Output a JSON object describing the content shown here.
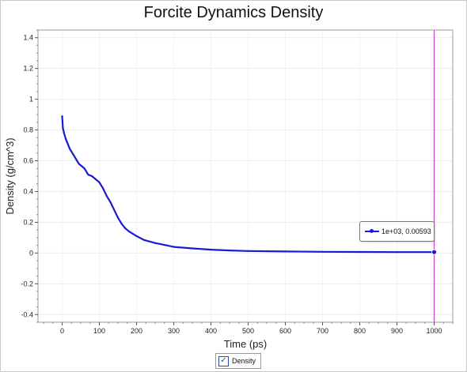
{
  "chart_data": {
    "type": "line",
    "title": "Forcite Dynamics Density",
    "xlabel": "Time (ps)",
    "ylabel": "Density (g/cm^3)",
    "xlim": [
      -65,
      1050
    ],
    "ylim": [
      -0.45,
      1.45
    ],
    "xticks": [
      0,
      100,
      200,
      300,
      400,
      500,
      600,
      700,
      800,
      900,
      1000
    ],
    "yticks": [
      -0.4,
      -0.2,
      0,
      0.2,
      0.4,
      0.6,
      0.8,
      1,
      1.2,
      1.4
    ],
    "ytick_labels": [
      "-0.4",
      "-0.2",
      "0",
      "0.2",
      "0.4",
      "0.6",
      "0.8",
      "1",
      "1.2",
      "1.4"
    ],
    "grid": true,
    "legend_position": "bottom-center",
    "series": [
      {
        "name": "Density",
        "color": "#1a1ad0",
        "x": [
          0,
          2,
          5,
          10,
          15,
          20,
          30,
          40,
          45,
          50,
          55,
          60,
          70,
          80,
          90,
          100,
          110,
          120,
          130,
          140,
          150,
          160,
          170,
          180,
          200,
          220,
          250,
          280,
          300,
          350,
          400,
          450,
          500,
          600,
          700,
          800,
          900,
          1000
        ],
        "y": [
          0.89,
          0.81,
          0.78,
          0.74,
          0.71,
          0.68,
          0.64,
          0.6,
          0.58,
          0.57,
          0.56,
          0.55,
          0.51,
          0.5,
          0.48,
          0.46,
          0.42,
          0.37,
          0.33,
          0.28,
          0.23,
          0.19,
          0.16,
          0.14,
          0.11,
          0.085,
          0.065,
          0.05,
          0.04,
          0.03,
          0.022,
          0.017,
          0.013,
          0.01,
          0.008,
          0.007,
          0.006,
          0.00593
        ]
      }
    ],
    "cursor_x": 1000
  },
  "tooltip": {
    "text": "1e+03, 0.00593"
  },
  "legend": {
    "label": "Density",
    "checked": true
  }
}
